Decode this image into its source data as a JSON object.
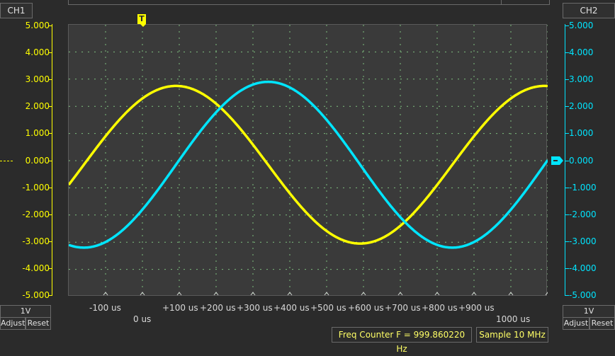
{
  "ch1": {
    "label": "CH1",
    "color": "#ffff00",
    "ticks": [
      "5.000",
      "4.000",
      "3.000",
      "2.000",
      "1.000",
      "0.000",
      "-1.000",
      "-2.000",
      "-3.000",
      "-4.000",
      "-5.000"
    ],
    "volts_div": "1V",
    "adjust_label": "Adjust",
    "reset_label": "Reset"
  },
  "ch2": {
    "label": "CH2",
    "color": "#00e5ff",
    "ticks": [
      "5.000",
      "4.000",
      "3.000",
      "2.000",
      "1.000",
      "0.000",
      "-1.000",
      "-2.000",
      "-3.000",
      "-4.000",
      "-5.000"
    ],
    "volts_div": "1V",
    "adjust_label": "Adjust",
    "reset_label": "Reset"
  },
  "trigger_marker": "T",
  "time_axis": {
    "labels": [
      "-100 us",
      "+100 us",
      "+200 us",
      "+300 us",
      "+400 us",
      "+500 us",
      "+600 us",
      "+700 us",
      "+800 us",
      "+900 us"
    ],
    "zero_label": "0 us",
    "end_label": "1000 us"
  },
  "status": {
    "freq_counter": "Freq Counter F = 999.860220 Hz",
    "sample": "Sample 10 MHz"
  },
  "chart_data": {
    "type": "line",
    "x_unit": "us",
    "xlim": [
      -200,
      1100
    ],
    "ylim": [
      -5,
      5
    ],
    "grid": true,
    "series": [
      {
        "name": "CH1",
        "color": "#ffff00",
        "amplitude": 2.9,
        "offset": -0.15,
        "frequency_hz": 999.86,
        "phase_deg": 90
      },
      {
        "name": "CH2",
        "color": "#00e5ff",
        "amplitude": 3.05,
        "offset": -0.15,
        "frequency_hz": 999.86,
        "phase_deg": 0
      }
    ]
  }
}
